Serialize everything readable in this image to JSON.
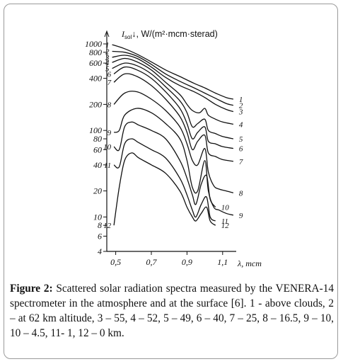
{
  "chart_data": {
    "type": "line",
    "ylabel": "I_sol↓, W/(m²·mcm·sterad)",
    "ylabel_symbol": "I",
    "ylabel_sub": "sol",
    "ylabel_arrow": "↓,",
    "ylabel_units": "W/(m²·mcm·sterad)",
    "xlabel": "λ, mcm",
    "xlabel_symbol": "λ, mcm",
    "y_scale": "log",
    "xlim": [
      0.45,
      1.2
    ],
    "ylim": [
      4,
      1000
    ],
    "x_ticks": [
      {
        "value": 0.5,
        "label": "0,5"
      },
      {
        "value": 0.7,
        "label": "0,7"
      },
      {
        "value": 0.9,
        "label": "0,9"
      },
      {
        "value": 1.1,
        "label": "1,1"
      }
    ],
    "y_ticks": [
      {
        "value": 1000,
        "label": "1000"
      },
      {
        "value": 800,
        "label": "800"
      },
      {
        "value": 600,
        "label": "600"
      },
      {
        "value": 400,
        "label": "400"
      },
      {
        "value": 200,
        "label": "200"
      },
      {
        "value": 100,
        "label": "100"
      },
      {
        "value": 80,
        "label": "80"
      },
      {
        "value": 60,
        "label": "60"
      },
      {
        "value": 40,
        "label": "40"
      },
      {
        "value": 20,
        "label": "20"
      },
      {
        "value": 10,
        "label": "10"
      },
      {
        "value": 8,
        "label": "8"
      },
      {
        "value": 6,
        "label": "6"
      },
      {
        "value": 4,
        "label": "4"
      }
    ],
    "grid": false,
    "series": [
      {
        "name": "1",
        "x": [
          0.48,
          0.55,
          0.62,
          0.7,
          0.78,
          0.86,
          0.94,
          1.0,
          1.06,
          1.12,
          1.16
        ],
        "y": [
          980,
          880,
          760,
          620,
          500,
          420,
          350,
          310,
          270,
          240,
          230
        ]
      },
      {
        "name": "2",
        "x": [
          0.48,
          0.55,
          0.62,
          0.7,
          0.78,
          0.86,
          0.94,
          1.0,
          1.06,
          1.12,
          1.16
        ],
        "y": [
          820,
          800,
          720,
          580,
          450,
          370,
          310,
          270,
          235,
          205,
          195
        ]
      },
      {
        "name": "3",
        "x": [
          0.48,
          0.55,
          0.62,
          0.7,
          0.78,
          0.86,
          0.94,
          1.0,
          1.06,
          1.12,
          1.16
        ],
        "y": [
          700,
          740,
          680,
          540,
          410,
          330,
          280,
          240,
          200,
          175,
          165
        ]
      },
      {
        "name": "4",
        "x": [
          0.48,
          0.55,
          0.62,
          0.7,
          0.78,
          0.86,
          0.9,
          0.93,
          0.97,
          1.0,
          1.02,
          1.06,
          1.1,
          1.16
        ],
        "y": [
          610,
          680,
          620,
          500,
          360,
          260,
          200,
          170,
          160,
          180,
          150,
          135,
          125,
          118
        ]
      },
      {
        "name": "5",
        "x": [
          0.48,
          0.55,
          0.62,
          0.7,
          0.78,
          0.86,
          0.9,
          0.93,
          0.96,
          1.0,
          1.02,
          1.06,
          1.1,
          1.16
        ],
        "y": [
          520,
          600,
          560,
          450,
          320,
          220,
          160,
          110,
          120,
          135,
          100,
          92,
          85,
          80
        ]
      },
      {
        "name": "6",
        "x": [
          0.49,
          0.55,
          0.62,
          0.7,
          0.78,
          0.86,
          0.9,
          0.93,
          0.96,
          1.0,
          1.02,
          1.06,
          1.1,
          1.16
        ],
        "y": [
          450,
          540,
          500,
          400,
          280,
          180,
          120,
          80,
          95,
          110,
          75,
          70,
          65,
          62
        ]
      },
      {
        "name": "7",
        "x": [
          0.49,
          0.55,
          0.62,
          0.7,
          0.78,
          0.86,
          0.9,
          0.93,
          0.96,
          1.0,
          1.02,
          1.06,
          1.1,
          1.16
        ],
        "y": [
          360,
          450,
          420,
          330,
          230,
          145,
          95,
          60,
          75,
          88,
          55,
          50,
          46,
          44
        ]
      },
      {
        "name": "8",
        "x": [
          0.49,
          0.55,
          0.62,
          0.7,
          0.78,
          0.86,
          0.9,
          0.93,
          0.96,
          1.0,
          1.02,
          1.05,
          1.08,
          1.12,
          1.16
        ],
        "y": [
          200,
          270,
          280,
          230,
          170,
          110,
          70,
          45,
          40,
          62,
          33,
          23,
          21,
          20,
          19
        ]
      },
      {
        "name": "9",
        "x": [
          0.49,
          0.52,
          0.55,
          0.62,
          0.7,
          0.78,
          0.86,
          0.9,
          0.93,
          0.96,
          1.0,
          1.02,
          1.05,
          1.08,
          1.12,
          1.16
        ],
        "y": [
          95,
          100,
          150,
          180,
          160,
          120,
          80,
          45,
          22,
          20,
          45,
          20,
          13,
          12,
          11,
          10.5
        ]
      },
      {
        "name": "10",
        "x": [
          0.49,
          0.52,
          0.55,
          0.59,
          0.63,
          0.7,
          0.78,
          0.86,
          0.9,
          0.93,
          0.95,
          0.98,
          1.01,
          1.03,
          1.06
        ],
        "y": [
          65,
          60,
          110,
          125,
          115,
          100,
          80,
          45,
          28,
          18,
          14,
          24,
          30,
          16,
          13
        ]
      },
      {
        "name": "11",
        "x": [
          0.49,
          0.52,
          0.55,
          0.59,
          0.63,
          0.7,
          0.78,
          0.86,
          0.9,
          0.93,
          0.95,
          0.98,
          1.01,
          1.03,
          1.06
        ],
        "y": [
          40,
          38,
          70,
          80,
          72,
          60,
          48,
          28,
          18,
          12,
          10,
          14,
          17,
          10,
          9
        ]
      },
      {
        "name": "12",
        "x": [
          0.49,
          0.52,
          0.55,
          0.59,
          0.63,
          0.7,
          0.78,
          0.86,
          0.9,
          0.93,
          0.95,
          0.98,
          1.01,
          1.03,
          1.06
        ],
        "y": [
          8,
          22,
          45,
          55,
          48,
          40,
          32,
          20,
          13,
          10,
          9,
          11,
          13,
          9,
          8
        ]
      }
    ]
  },
  "caption": {
    "label": "Figure 2:",
    "text": " Scattered solar radiation spectra measured by the VENERA-14 spectrometer in the atmosphere and at the surface [6]. 1 - above clouds, 2 – at 62 km altitude, 3 – 55, 4 – 52, 5 – 49, 6 – 40, 7 – 25, 8 – 16.5, 9 – 10, 10 – 4.5, 11- 1, 12 – 0 km."
  }
}
